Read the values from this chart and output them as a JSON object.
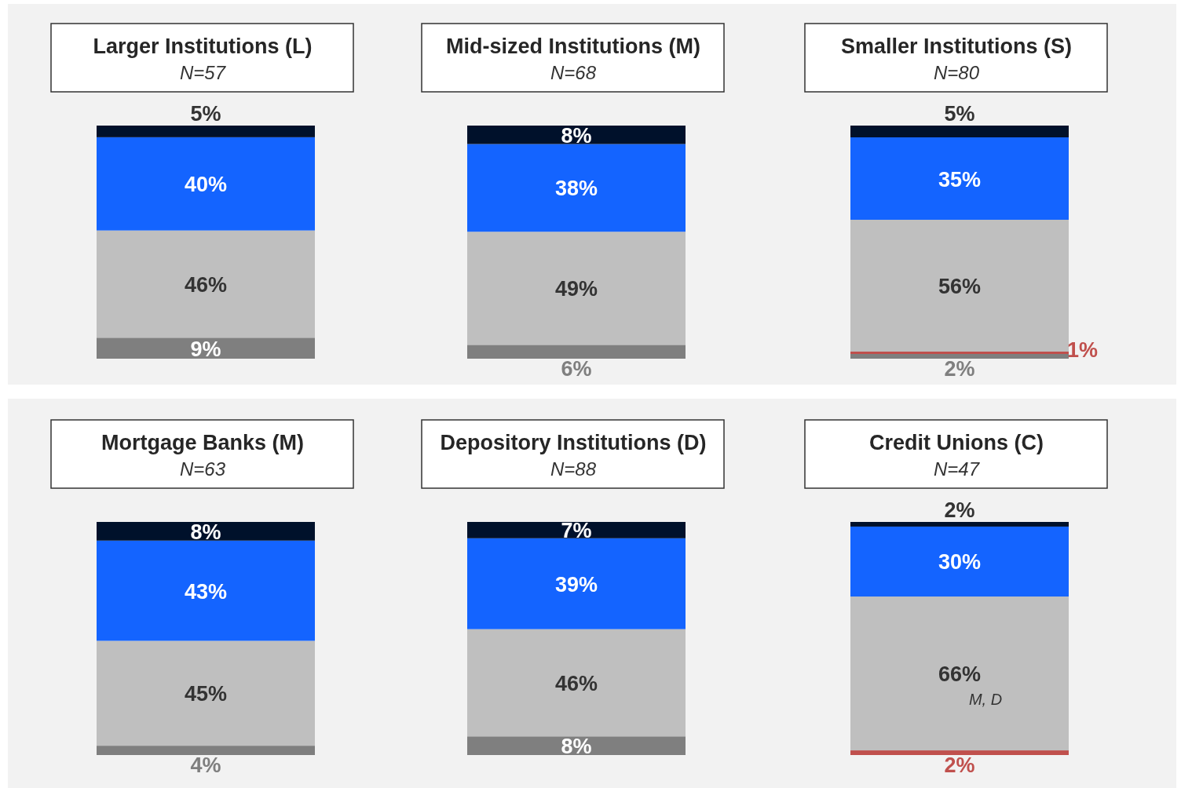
{
  "chart_data": [
    {
      "type": "bar",
      "stacked": true,
      "title": "Larger Institutions (L)",
      "subtitle": "N=57",
      "categories": [
        null
      ],
      "series": [
        {
          "color": "#7f7f7f",
          "values": [
            9
          ],
          "value_labels": [
            "9%"
          ]
        },
        {
          "color": "#bfbfbf",
          "values": [
            46
          ],
          "value_labels": [
            "46%"
          ]
        },
        {
          "color": "#1464ff",
          "values": [
            40
          ],
          "value_labels": [
            "40%"
          ]
        },
        {
          "color": "#00112b",
          "values": [
            5
          ],
          "value_labels": [
            "5%"
          ]
        }
      ]
    },
    {
      "type": "bar",
      "stacked": true,
      "title": "Mid-sized Institutions (M)",
      "subtitle": "N=68",
      "categories": [
        null
      ],
      "series": [
        {
          "color": "#7f7f7f",
          "values": [
            6
          ],
          "value_labels": [
            "6%"
          ]
        },
        {
          "color": "#bfbfbf",
          "values": [
            49
          ],
          "value_labels": [
            "49%"
          ]
        },
        {
          "color": "#1464ff",
          "values": [
            38
          ],
          "value_labels": [
            "38%"
          ]
        },
        {
          "color": "#00112b",
          "values": [
            8
          ],
          "value_labels": [
            "8%"
          ]
        }
      ]
    },
    {
      "type": "bar",
      "stacked": true,
      "title": "Smaller Institutions (S)",
      "subtitle": "N=80",
      "categories": [
        null
      ],
      "series": [
        {
          "color": "#7f7f7f",
          "values": [
            2
          ],
          "value_labels": [
            "2%"
          ]
        },
        {
          "color": "#c0504d",
          "values": [
            1
          ],
          "value_labels": [
            "1%"
          ]
        },
        {
          "color": "#bfbfbf",
          "values": [
            56
          ],
          "value_labels": [
            "56%"
          ]
        },
        {
          "color": "#1464ff",
          "values": [
            35
          ],
          "value_labels": [
            "35%"
          ]
        },
        {
          "color": "#00112b",
          "values": [
            5
          ],
          "value_labels": [
            "5%"
          ]
        }
      ]
    },
    {
      "type": "bar",
      "stacked": true,
      "title": "Mortgage Banks (M)",
      "subtitle": "N=63",
      "categories": [
        null
      ],
      "series": [
        {
          "color": "#7f7f7f",
          "values": [
            4
          ],
          "value_labels": [
            "4%"
          ]
        },
        {
          "color": "#bfbfbf",
          "values": [
            45
          ],
          "value_labels": [
            "45%"
          ]
        },
        {
          "color": "#1464ff",
          "values": [
            43
          ],
          "value_labels": [
            "43%"
          ]
        },
        {
          "color": "#00112b",
          "values": [
            8
          ],
          "value_labels": [
            "8%"
          ]
        }
      ]
    },
    {
      "type": "bar",
      "stacked": true,
      "title": "Depository Institutions (D)",
      "subtitle": "N=88",
      "categories": [
        null
      ],
      "series": [
        {
          "color": "#7f7f7f",
          "values": [
            8
          ],
          "value_labels": [
            "8%"
          ]
        },
        {
          "color": "#bfbfbf",
          "values": [
            46
          ],
          "value_labels": [
            "46%"
          ]
        },
        {
          "color": "#1464ff",
          "values": [
            39
          ],
          "value_labels": [
            "39%"
          ]
        },
        {
          "color": "#00112b",
          "values": [
            7
          ],
          "value_labels": [
            "7%"
          ]
        }
      ]
    },
    {
      "type": "bar",
      "stacked": true,
      "title": "Credit Unions (C)",
      "subtitle": "N=47",
      "categories": [
        null
      ],
      "annotations": [
        "M, D"
      ],
      "series": [
        {
          "color": "#c0504d",
          "values": [
            2
          ],
          "value_labels": [
            "2%"
          ]
        },
        {
          "color": "#bfbfbf",
          "values": [
            66
          ],
          "value_labels": [
            "66%"
          ]
        },
        {
          "color": "#1464ff",
          "values": [
            30
          ],
          "value_labels": [
            "30%"
          ]
        },
        {
          "color": "#00112b",
          "values": [
            2
          ],
          "value_labels": [
            "2%"
          ]
        }
      ]
    }
  ]
}
